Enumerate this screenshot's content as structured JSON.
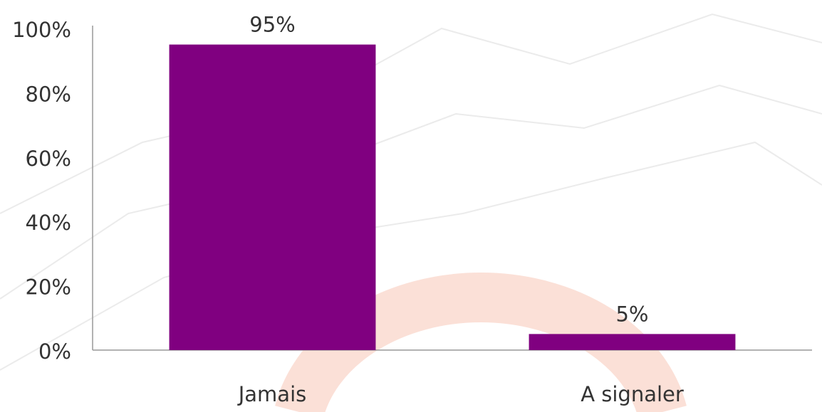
{
  "chart_data": {
    "type": "bar",
    "categories": [
      "Jamais",
      "A signaler"
    ],
    "values": [
      95,
      5
    ],
    "value_labels": [
      "95%",
      "5%"
    ],
    "color": "#800080",
    "ylim": [
      0,
      100
    ],
    "yticks": [
      {
        "value": 0,
        "label": "0%"
      },
      {
        "value": 20,
        "label": "20%"
      },
      {
        "value": 40,
        "label": "40%"
      },
      {
        "value": 60,
        "label": "60%"
      },
      {
        "value": 80,
        "label": "80%"
      },
      {
        "value": 100,
        "label": "100%"
      }
    ],
    "grid": false
  }
}
